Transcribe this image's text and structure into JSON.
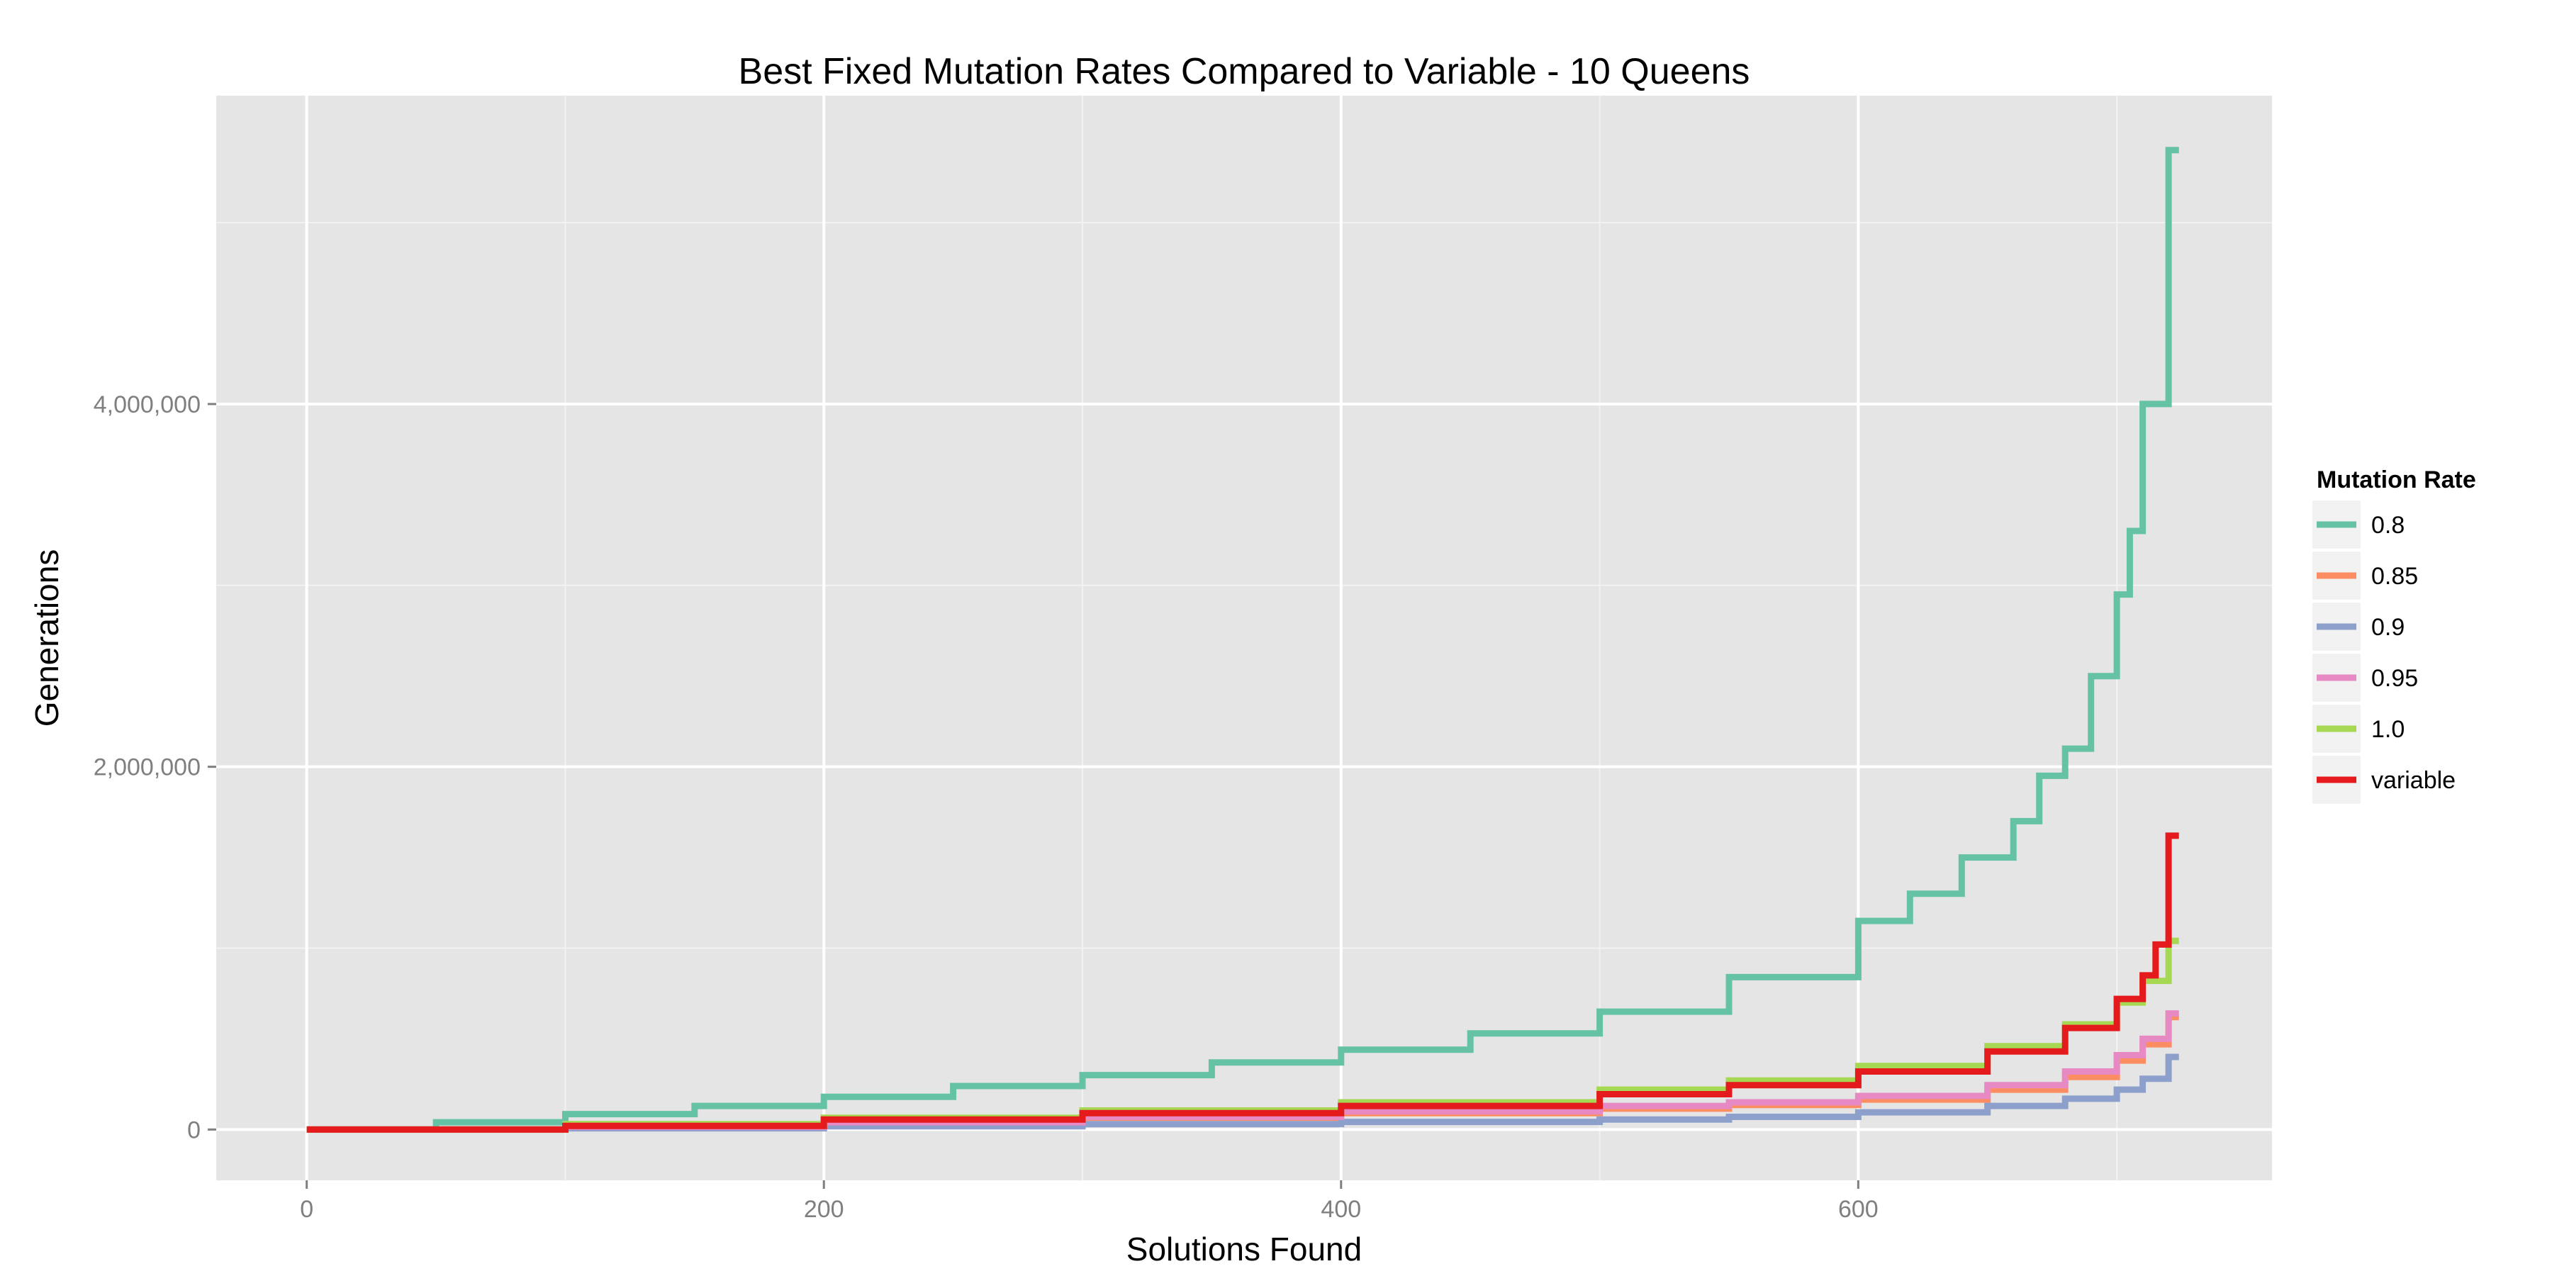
{
  "chart_data": {
    "type": "line",
    "title": "Best Fixed Mutation Rates Compared to Variable - 10 Queens",
    "xlabel": "Solutions Found",
    "ylabel": "Generations",
    "xlim": [
      -35,
      760
    ],
    "ylim": [
      -280000,
      5700000
    ],
    "x_ticks": [
      0,
      200,
      400,
      600
    ],
    "x_tick_labels": [
      "0",
      "200",
      "400",
      "600"
    ],
    "y_ticks": [
      0,
      2000000,
      4000000
    ],
    "y_tick_labels": [
      "0",
      "2,000,000",
      "4,000,000"
    ],
    "grid": true,
    "line_style": "step",
    "legend": {
      "title": "Mutation Rate",
      "position": "right"
    },
    "series": [
      {
        "name": "0.8",
        "color": "#66c2a5",
        "x": [
          0,
          50,
          100,
          150,
          200,
          250,
          300,
          350,
          400,
          450,
          500,
          550,
          600,
          620,
          640,
          660,
          670,
          680,
          690,
          700,
          705,
          710,
          715,
          720,
          724
        ],
        "y": [
          0,
          40000,
          85000,
          130000,
          180000,
          240000,
          300000,
          370000,
          440000,
          530000,
          650000,
          840000,
          1150000,
          1300000,
          1500000,
          1700000,
          1950000,
          2100000,
          2500000,
          2950000,
          3300000,
          4000000,
          4000000,
          5400000,
          5400000
        ]
      },
      {
        "name": "0.85",
        "color": "#fc8d62",
        "x": [
          0,
          100,
          200,
          300,
          400,
          500,
          550,
          600,
          650,
          680,
          700,
          710,
          720,
          724
        ],
        "y": [
          0,
          15000,
          40000,
          65000,
          90000,
          115000,
          135000,
          165000,
          220000,
          290000,
          380000,
          470000,
          620000,
          620000
        ]
      },
      {
        "name": "0.9",
        "color": "#8da0cb",
        "x": [
          0,
          100,
          200,
          300,
          400,
          500,
          550,
          600,
          650,
          680,
          700,
          710,
          720,
          724
        ],
        "y": [
          0,
          7000,
          18000,
          30000,
          42000,
          55000,
          70000,
          95000,
          130000,
          170000,
          220000,
          280000,
          400000,
          400000
        ]
      },
      {
        "name": "0.95",
        "color": "#e78ac3",
        "x": [
          0,
          100,
          200,
          300,
          400,
          500,
          550,
          600,
          650,
          680,
          700,
          710,
          720,
          724
        ],
        "y": [
          0,
          15000,
          40000,
          70000,
          100000,
          130000,
          150000,
          185000,
          245000,
          320000,
          410000,
          500000,
          640000,
          640000
        ]
      },
      {
        "name": "1.0",
        "color": "#a6d854",
        "x": [
          0,
          100,
          200,
          300,
          400,
          500,
          550,
          600,
          650,
          680,
          700,
          710,
          720,
          724
        ],
        "y": [
          0,
          30000,
          65000,
          105000,
          150000,
          220000,
          270000,
          350000,
          460000,
          580000,
          700000,
          820000,
          1040000,
          1040000
        ]
      },
      {
        "name": "variable",
        "color": "#e41a1c",
        "x": [
          0,
          100,
          200,
          300,
          400,
          500,
          550,
          600,
          650,
          680,
          700,
          710,
          715,
          720,
          724
        ],
        "y": [
          0,
          20000,
          55000,
          90000,
          130000,
          195000,
          245000,
          320000,
          430000,
          560000,
          720000,
          850000,
          1020000,
          1620000,
          1620000
        ]
      }
    ]
  }
}
